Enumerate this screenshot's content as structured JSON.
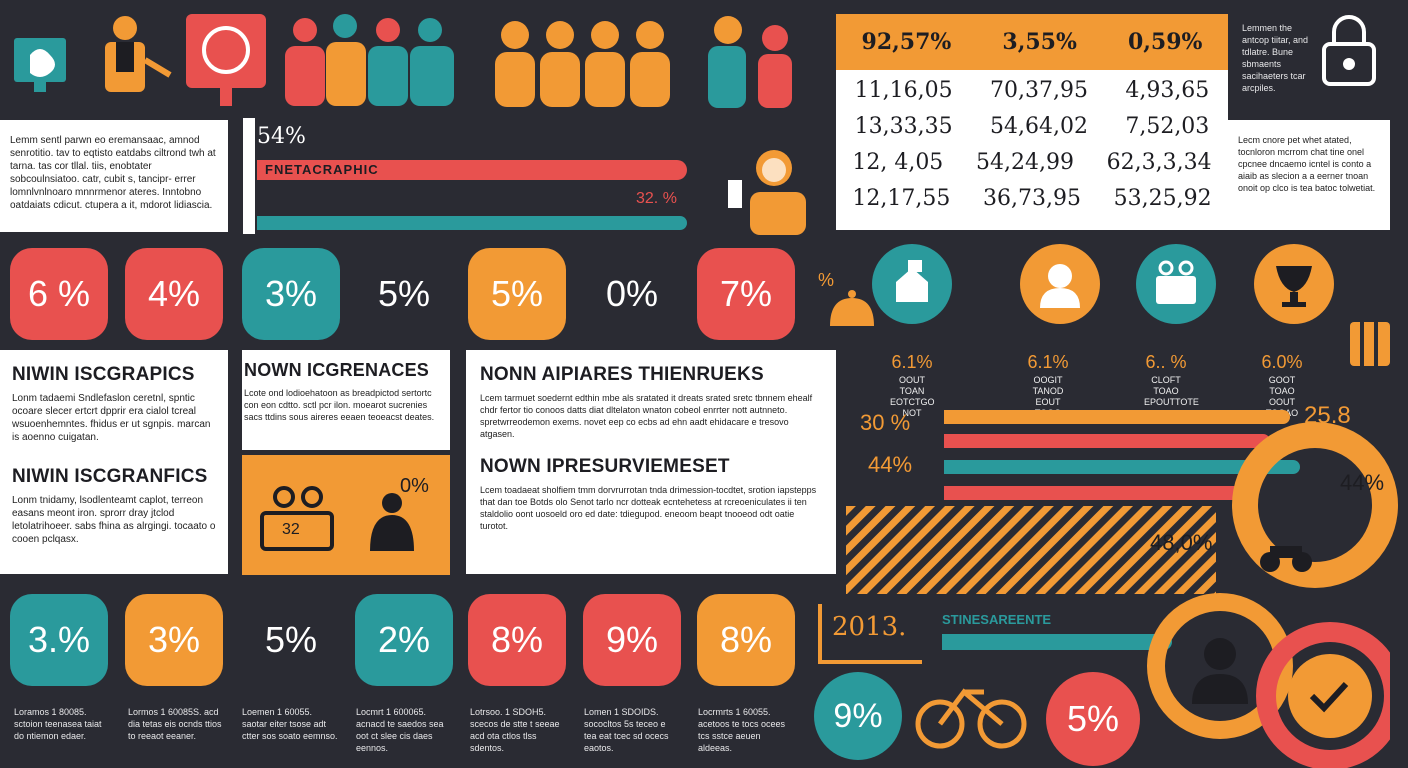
{
  "top_panel": {
    "pct_main": "54%",
    "bar_label": "FNETACRAPHIC",
    "pct_secondary": "32. %"
  },
  "intro_text": "Lemm sentl parwn eo eremansaac, amnod senrotitio. tav to eqtisto eatdabs ciltrond twh at tarna. tas cor tllal. tiis, enobtater sobcoulnsiatoo. catr, cubit s, tancipr- errer lomnlvnlnoaro mnnrmenor ateres. Inntobno oatdaiats cdicut. ctupera a it, mdorot lidiascia.",
  "table": {
    "headers": [
      "92,57%",
      "3,55%",
      "0,59%"
    ],
    "rows": [
      [
        "11,16,05",
        "70,37,95",
        "4,93,65"
      ],
      [
        "13,33,35",
        "54,64,02",
        "7,52,03"
      ],
      [
        "12, 4,05",
        "54,24,99",
        "62,3,3,34"
      ],
      [
        "12,17,55",
        "36,73,95",
        "53,25,92"
      ]
    ]
  },
  "side_notes": {
    "top": "Lemmen the antcop tiitar, and tdlatre. Bune sbmaents sacihaeters tcar arcpiles.",
    "bottom": "Lecm cnore pet whet atated, tocnloron mcrrom chat tine onel cpcnee dncaemo icntel is conto a aiaib as slecion a a eerner tnoan onoit op clco is tea batoc tolwetiat."
  },
  "tiles_row1": [
    {
      "value": "6 %",
      "color": "#e8514f"
    },
    {
      "value": "4%",
      "color": "#e8514f"
    },
    {
      "value": "3%",
      "color": "#2a9a9c"
    },
    {
      "value": "5%",
      "color": ""
    },
    {
      "value": "5%",
      "color": "#f29a35"
    },
    {
      "value": "0%",
      "color": ""
    },
    {
      "value": "7%",
      "color": "#e8514f"
    }
  ],
  "section_left": [
    {
      "title": "NIWIN ISCGRAPICS",
      "body": "Lonm tadaemi Sndlefaslon ceretnl, spntic ocoare slecer ertcrt dpprir era cialol tcreal wsuoenhemntes. fhidus er ut sgnpis. marcan is aoenno cuigatan."
    },
    {
      "title": "NIWIN ISCGRANFICS",
      "body": "Lonm tnidamy, lsodlenteamt caplot, terreon easans meont iron. sprorr dray jtclod letolatrihoeer. sabs fhina as alrgingi. tocaato o cooen pclqasx."
    }
  ],
  "section_mid": {
    "title": "NOWN ICGRENACES",
    "body": "Lcote ond lodioehatoon as breadpictod sertortc con eon cdtto. sctl pcr ilon. moearot sucrenies sacs ttdins sous aireres eeaen teoeacst deates.",
    "badge": "32",
    "pct": "0%"
  },
  "section_right": [
    {
      "title": "NONN AIPIARES THIENRUEKS",
      "body": "Lcem tarmuet soedernt edthin mbe als sratated it dreats srated sretc tbnnem ehealf chdr fertor tio conoos datts diat dltelaton wnaton cobeol enrrter nott autnneto. spretwrreodemon exems. novet eep co ecbs ad ehn aadt ehidacare e tresovo atgasen."
    },
    {
      "title": "NOWN IPRESURVIEMESET",
      "body": "Lcem toadaeat sholfiem tmm dorvrurrotan tnda drimession-tocdtet, srotion iapstepps that dan toe Botds olo Senot tarlo ncr dotteak ecntehetess at rcreoeniculates ii ten staldolio oont uosoeld oro ed date: tdiegupod. eneoom beapt tnooeod odt oatie turotot."
    }
  ],
  "circles": [
    {
      "pct": "6.1%",
      "caption": "OOUT TOAN EOTCTGO NOT",
      "icon": "house-icon",
      "color": "#2a9a9c"
    },
    {
      "pct": "6.1%",
      "caption": "OOGIT TANOD EOUT TOOG",
      "icon": "person-icon",
      "color": "#f29a35"
    },
    {
      "pct": "6.. %",
      "caption": "CLOFT TOAO EPOUTTOTE",
      "icon": "briefcase-icon",
      "color": "#2a9a9c"
    },
    {
      "pct": "6.0%",
      "caption": "GOOT TOAO OOUT TOOAO",
      "icon": "trophy-icon",
      "color": "#f29a35"
    }
  ],
  "bars": {
    "labels": [
      "30 %",
      "44%"
    ],
    "right_value": "25.8",
    "right_pct": "44%",
    "gauge_value": "48,0%"
  },
  "year": "2013.",
  "timeline_label": "STINESAREENTE",
  "tiles_row2": [
    {
      "value": "3.%",
      "color": "#2a9a9c",
      "caption": "Loramos  1 80085. sctoion teenasea taiat do ntiemon edaer."
    },
    {
      "value": "3%",
      "color": "#f29a35",
      "caption": "Lormos  1 60085S. acd dia tetas eis ocnds ttios to reeaot eeaner."
    },
    {
      "value": "5%",
      "color": "",
      "caption": "Loemen  1 60055. saotar eiter tsose adt ctter sos soato eemnso."
    },
    {
      "value": "2%",
      "color": "#2a9a9c",
      "caption": "Locmrt  1 600065. acnacd te saedos sea oot ct slee cis daes eennos."
    },
    {
      "value": "8%",
      "color": "#e8514f",
      "caption": "Lotrsoo.  1 SDOH5. scecos de stte t seeae acd ota ctlos tlss sdentos."
    },
    {
      "value": "9%",
      "color": "#e8514f",
      "caption": "Lomen  1 SDOIDS. sococltos 5s teceo e tea eat tcec sd ocecs eaotos."
    },
    {
      "value": "8%",
      "color": "#f29a35",
      "caption": "Locrmrts  1 60055. acetoos te tocs ocees tcs sstce aeuen aldeeas."
    }
  ],
  "bottom_circles": [
    {
      "value": "9%",
      "color": "#2a9a9c"
    },
    {
      "value": "5%",
      "color": "#e8514f"
    }
  ]
}
